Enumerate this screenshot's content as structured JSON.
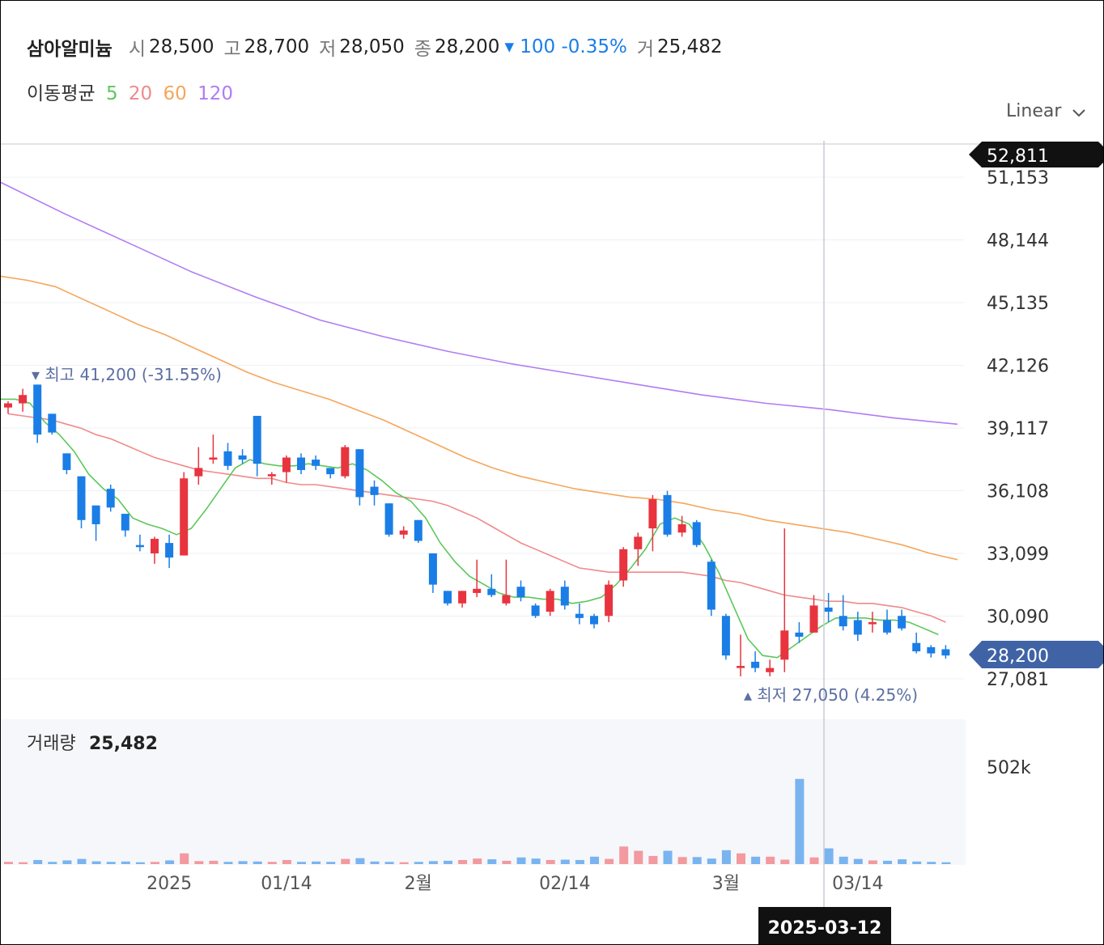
{
  "header": {
    "name": "삼아알미늄",
    "open_label": "시",
    "open": "28,500",
    "high_label": "고",
    "high": "28,700",
    "low_label": "저",
    "low": "28,050",
    "close_label": "종",
    "close": "28,200",
    "change": "▾ 100 -0.35%",
    "volume_label": "거",
    "volume": "25,482"
  },
  "ma_legend": {
    "label": "이동평균",
    "p5": "5",
    "p20": "20",
    "p60": "60",
    "p120": "120"
  },
  "scale_selector": {
    "value": "Linear",
    "icon": "chevron-down-icon"
  },
  "markers": {
    "high": "▾ 최고 41,200 (-31.55%)",
    "low": "▴ 최저 27,050 (4.25%)",
    "current_price": "28,200",
    "crosshair_price": "52,811",
    "crosshair_date": "2025-03-12"
  },
  "volume_legend": {
    "label": "거래량",
    "value": "25,482"
  },
  "colors": {
    "up": "#e8343f",
    "down": "#1a7ee6",
    "ma5": "#5cc85a",
    "ma20": "#f08a8a",
    "ma60": "#f5a65b",
    "ma120": "#b07cf2",
    "current_tag": "#4063a6"
  },
  "chart_data": {
    "type": "candlestick",
    "price_ticks": [
      "51,153",
      "48,144",
      "45,135",
      "42,126",
      "39,117",
      "36,108",
      "33,099",
      "30,090",
      "27,081"
    ],
    "volume_ticks": [
      "502k"
    ],
    "x_ticks": [
      "2025",
      "01/14",
      "2월",
      "02/14",
      "3월",
      "03/14"
    ],
    "ylim": [
      26200,
      53200
    ],
    "volume_max": 520000,
    "candles": [
      [
        40100,
        40400,
        39800,
        40300
      ],
      [
        40300,
        41000,
        39900,
        40700
      ],
      [
        41200,
        41200,
        38400,
        38800
      ],
      [
        39800,
        39800,
        38800,
        38900
      ],
      [
        37900,
        37900,
        36900,
        37100
      ],
      [
        36800,
        36800,
        34300,
        34700
      ],
      [
        35400,
        35400,
        33700,
        34500
      ],
      [
        36200,
        36400,
        35100,
        35300
      ],
      [
        35000,
        35000,
        33900,
        34200
      ],
      [
        33500,
        34000,
        33200,
        33400
      ],
      [
        33100,
        33900,
        32600,
        33800
      ],
      [
        33600,
        34000,
        32400,
        32900
      ],
      [
        33000,
        37000,
        33000,
        36700
      ],
      [
        36800,
        38200,
        36400,
        37200
      ],
      [
        37600,
        38800,
        37400,
        37700
      ],
      [
        38000,
        38400,
        37100,
        37300
      ],
      [
        37800,
        38100,
        37400,
        37600
      ],
      [
        39700,
        39700,
        36800,
        37400
      ],
      [
        36800,
        37000,
        36400,
        36900
      ],
      [
        37000,
        37800,
        36500,
        37700
      ],
      [
        37700,
        37900,
        36900,
        37100
      ],
      [
        37600,
        37800,
        37100,
        37300
      ],
      [
        37200,
        37200,
        36700,
        36900
      ],
      [
        36800,
        38300,
        36700,
        38200
      ],
      [
        38100,
        38100,
        35400,
        35800
      ],
      [
        36300,
        36600,
        35400,
        35900
      ],
      [
        35500,
        35500,
        33900,
        34000
      ],
      [
        34000,
        34400,
        33800,
        34200
      ],
      [
        34700,
        34700,
        33600,
        33700
      ],
      [
        33100,
        33100,
        31200,
        31600
      ],
      [
        31300,
        31300,
        30600,
        30700
      ],
      [
        30700,
        31300,
        30500,
        31300
      ],
      [
        31200,
        32800,
        31000,
        31400
      ],
      [
        31400,
        32100,
        31000,
        31100
      ],
      [
        30700,
        32800,
        30600,
        31100
      ],
      [
        31500,
        31800,
        30800,
        31000
      ],
      [
        30600,
        30700,
        30000,
        30100
      ],
      [
        30300,
        31400,
        30100,
        31300
      ],
      [
        31500,
        31800,
        30400,
        30600
      ],
      [
        30200,
        30700,
        29700,
        30000
      ],
      [
        30100,
        30200,
        29500,
        29700
      ],
      [
        30100,
        31800,
        29800,
        31600
      ],
      [
        31800,
        33400,
        31500,
        33300
      ],
      [
        33300,
        34100,
        32500,
        33900
      ],
      [
        34300,
        35900,
        33200,
        35700
      ],
      [
        35900,
        36100,
        33900,
        34000
      ],
      [
        34100,
        34900,
        33900,
        34500
      ],
      [
        34600,
        34700,
        33400,
        33500
      ],
      [
        32700,
        32800,
        30100,
        30400
      ],
      [
        30100,
        30200,
        28000,
        28200
      ],
      [
        27600,
        29200,
        27200,
        27700
      ],
      [
        27900,
        28400,
        27400,
        27600
      ],
      [
        27400,
        28000,
        27200,
        27600
      ],
      [
        28000,
        34300,
        27400,
        29400
      ],
      [
        29300,
        29800,
        28800,
        29100
      ],
      [
        29300,
        31100,
        29300,
        30600
      ],
      [
        30500,
        31200,
        29800,
        30300
      ],
      [
        30100,
        31100,
        29400,
        29600
      ],
      [
        29900,
        30300,
        28900,
        29200
      ],
      [
        29700,
        30300,
        29300,
        29800
      ],
      [
        29900,
        30400,
        29200,
        29300
      ],
      [
        30100,
        30400,
        29400,
        29500
      ],
      [
        28800,
        29300,
        28300,
        28400
      ],
      [
        28600,
        28700,
        28100,
        28300
      ],
      [
        28500,
        28700,
        28050,
        28200
      ]
    ],
    "volume": [
      12000,
      10000,
      22000,
      12000,
      20000,
      28000,
      15000,
      12000,
      14000,
      10000,
      12000,
      20000,
      58000,
      16000,
      18000,
      12000,
      16000,
      14000,
      12000,
      22000,
      12000,
      14000,
      12000,
      28000,
      32000,
      14000,
      12000,
      10000,
      12000,
      16000,
      18000,
      22000,
      30000,
      26000,
      18000,
      36000,
      30000,
      22000,
      24000,
      22000,
      40000,
      28000,
      95000,
      72000,
      44000,
      72000,
      38000,
      38000,
      30000,
      75000,
      58000,
      40000,
      40000,
      24000,
      460000,
      36000,
      85000,
      40000,
      28000,
      20000,
      18000,
      26000,
      14000,
      12000,
      10000
    ],
    "ma5_start": 1,
    "ma5": [
      40500,
      40500,
      40300,
      39400,
      38800,
      38000,
      36900,
      36200,
      35700,
      34800,
      34500,
      34300,
      34000,
      34300,
      35200,
      36200,
      37200,
      37600,
      37400,
      37300,
      37300,
      37400,
      37300,
      37200,
      37400,
      37100,
      36600,
      36000,
      35600,
      34800,
      33600,
      32700,
      32000,
      31600,
      31200,
      31000,
      31000,
      30900,
      30900,
      30700,
      30800,
      31000,
      31600,
      32400,
      33300,
      34500,
      34800,
      34500,
      33500,
      32200,
      30600,
      29000,
      28200,
      28100,
      28600,
      29100,
      29600,
      30000,
      30000,
      30000,
      29900,
      29900,
      29800,
      29500,
      29200
    ],
    "ma20": [
      39800,
      39700,
      39600,
      39500,
      39300,
      39100,
      38800,
      38600,
      38300,
      38000,
      37700,
      37500,
      37300,
      37100,
      37000,
      36900,
      36800,
      36700,
      36700,
      36500,
      36400,
      36400,
      36300,
      36200,
      36100,
      36000,
      35900,
      35800,
      35700,
      35600,
      35400,
      35100,
      34800,
      34400,
      34000,
      33600,
      33300,
      33000,
      32700,
      32400,
      32300,
      32200,
      32200,
      32200,
      32200,
      32200,
      32200,
      32100,
      32000,
      31800,
      31700,
      31500,
      31300,
      31100,
      31000,
      30900,
      30800,
      30800,
      30700,
      30700,
      30600,
      30500,
      30300,
      30100,
      29800
    ],
    "ma60_start": -20,
    "ma60": [
      46400,
      46200,
      45900,
      45300,
      44700,
      44100,
      43600,
      43000,
      42400,
      41800,
      41300,
      40900,
      40500,
      40000,
      39500,
      38900,
      38300,
      37700,
      37200,
      36800,
      36500,
      36200,
      36000,
      35800,
      35700,
      35500,
      35200,
      35000,
      34700,
      34500,
      34300,
      34100,
      33800,
      33500,
      33100,
      32800
    ],
    "ma60_idx": [
      0,
      3,
      5,
      8,
      10,
      13,
      15,
      18,
      20,
      23,
      25,
      28,
      30,
      33,
      35,
      38,
      40,
      43,
      45,
      48,
      50,
      53,
      55,
      58,
      60,
      63,
      65,
      68,
      70,
      73,
      75,
      78,
      80,
      83,
      85,
      88
    ],
    "ma120": [
      50900,
      49400,
      48000,
      46600,
      45400,
      44300,
      43500,
      42800,
      42200,
      41700,
      41200,
      40700,
      40300,
      40000,
      39600,
      39300
    ]
  }
}
